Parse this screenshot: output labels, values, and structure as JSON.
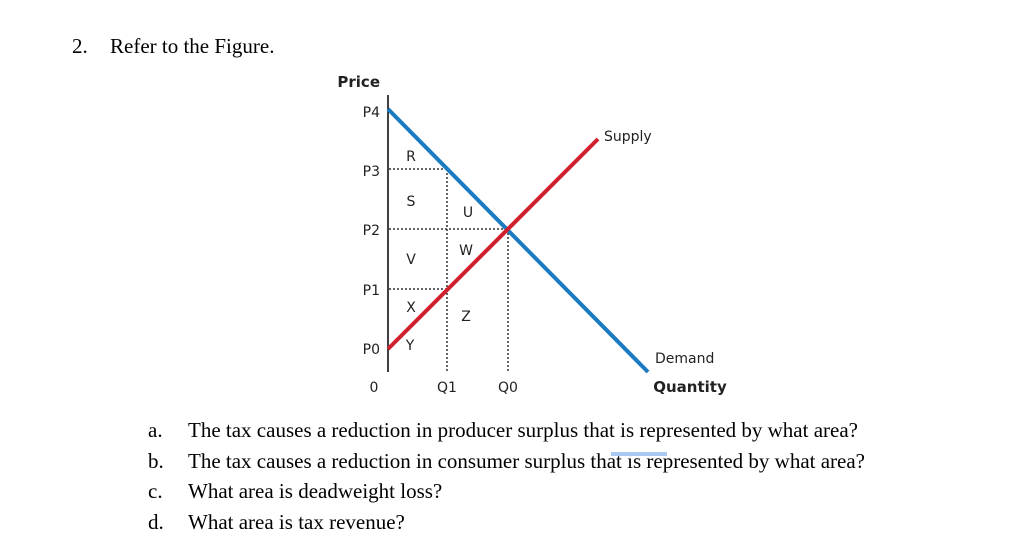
{
  "question": {
    "number": "2.",
    "text": "Refer to the Figure."
  },
  "figure": {
    "y_axis_title": "Price",
    "x_axis_title": "Quantity",
    "price_labels": [
      "P4",
      "P3",
      "P2",
      "P1",
      "P0"
    ],
    "quantity_labels": [
      "0",
      "Q1",
      "Q0"
    ],
    "curves": {
      "supply": "Supply",
      "demand": "Demand"
    },
    "areas": [
      "R",
      "S",
      "U",
      "W",
      "V",
      "X",
      "Z",
      "Y"
    ],
    "colors": {
      "supply": "#d0202e",
      "demand": "#1a7bc2"
    }
  },
  "parts": [
    {
      "letter": "a.",
      "text": "The tax causes a reduction in producer surplus that is represented by what area?"
    },
    {
      "letter": "b.",
      "text": "The tax causes a reduction in consumer surplus that is represented by what area?"
    },
    {
      "letter": "c.",
      "text": "What area is deadweight loss?"
    },
    {
      "letter": "d.",
      "text": "What area is tax revenue?"
    }
  ]
}
